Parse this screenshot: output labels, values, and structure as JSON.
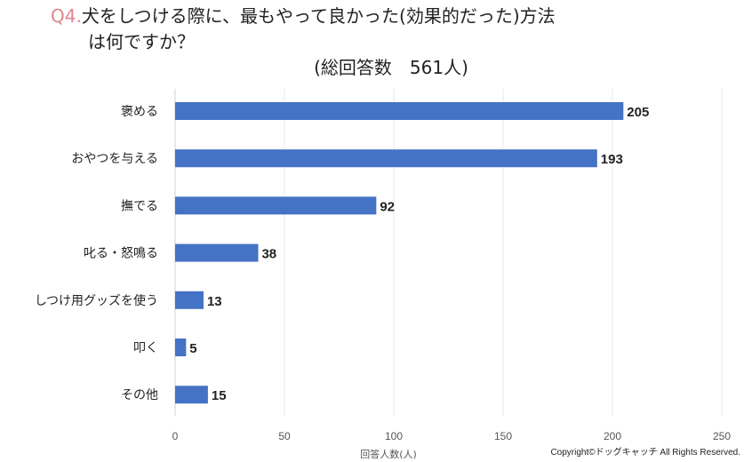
{
  "chart_data": {
    "type": "bar",
    "orientation": "horizontal",
    "title_prefix": "Q4.",
    "title_line1": "犬をしつける際に、最もやって良かった(効果的だった)方法",
    "title_line2": "は何ですか？",
    "subtitle": "(総回答数　561人)",
    "categories": [
      "褒める",
      "おやつを与える",
      "撫でる",
      "叱る・怒鳴る",
      "しつけ用グッズを使う",
      "叩く",
      "その他"
    ],
    "values": [
      205,
      193,
      92,
      38,
      13,
      5,
      15
    ],
    "xlabel": "回答人数(人)",
    "ylabel": "",
    "xlim": [
      0,
      250
    ],
    "xticks": [
      0,
      50,
      100,
      150,
      200,
      250
    ],
    "grid": true,
    "bar_color": "#4472c4"
  },
  "copyright": "Copyright©ドッグキャッチ All Rights Reserved."
}
